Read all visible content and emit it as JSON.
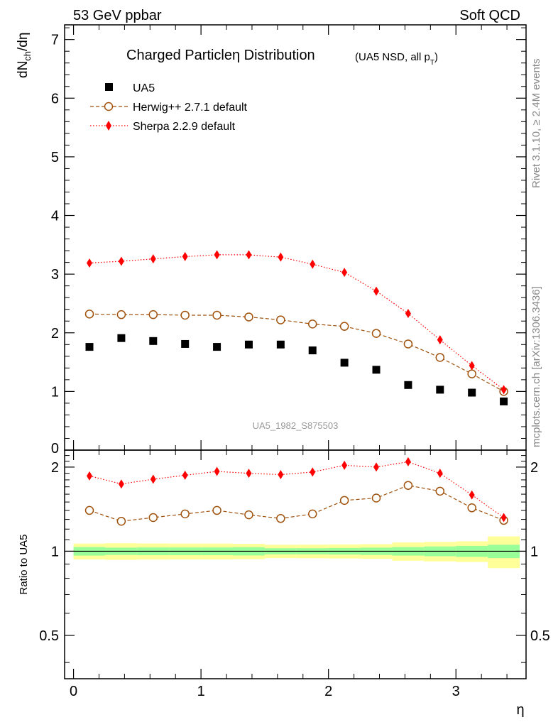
{
  "header": {
    "left": "53 GeV ppbar",
    "right": "Soft QCD"
  },
  "title": {
    "main": "Charged Particleη Distribution",
    "sub": "(UA5 NSD, all p",
    "sub_subscript": "T",
    "sub_close": ")"
  },
  "side_labels": {
    "rivet": "Rivet 3.1.10, ≥ 2.4M events",
    "mcplots": "mcplots.cern.ch [arXiv:1306.3436]"
  },
  "watermark": "UA5_1982_S875503",
  "colors": {
    "data": "#000000",
    "herwig": "#a0520d",
    "sherpa": "#ff0000",
    "band_outer": "#ffff99",
    "band_inner": "#99ff99"
  },
  "chart_data": [
    {
      "type": "scatter",
      "ylabel_main": "dN",
      "ylabel_sub": "ch",
      "ylabel_rest": "/dη",
      "xlim": [
        -0.07,
        3.55
      ],
      "ylim": [
        0,
        7.25
      ],
      "yticks": [
        1,
        2,
        3,
        4,
        5,
        6,
        7
      ],
      "ytick_labels": [
        "1",
        "2",
        "3",
        "4",
        "5",
        "6",
        "7"
      ],
      "bottom_tick_label": "0",
      "legend_position": "top-left",
      "x": [
        0.125,
        0.375,
        0.625,
        0.875,
        1.125,
        1.375,
        1.625,
        1.875,
        2.125,
        2.375,
        2.625,
        2.875,
        3.125,
        3.375
      ],
      "series": [
        {
          "name": "UA5",
          "marker": "square",
          "values": [
            1.76,
            1.91,
            1.86,
            1.81,
            1.76,
            1.8,
            1.8,
            1.7,
            1.49,
            1.37,
            1.11,
            1.03,
            0.98,
            0.83
          ]
        },
        {
          "name": "Herwig++ 2.7.1 default",
          "marker": "open-circle",
          "line": "dashed",
          "values": [
            2.32,
            2.31,
            2.31,
            2.3,
            2.3,
            2.27,
            2.22,
            2.15,
            2.11,
            1.99,
            1.81,
            1.58,
            1.3,
            1.0
          ]
        },
        {
          "name": "Sherpa 2.2.9 default",
          "marker": "diamond",
          "line": "dotted",
          "values": [
            3.19,
            3.22,
            3.26,
            3.3,
            3.33,
            3.33,
            3.29,
            3.17,
            3.03,
            2.71,
            2.33,
            1.88,
            1.44,
            1.03
          ]
        }
      ]
    },
    {
      "type": "scatter",
      "ylabel": "Ratio to UA5",
      "xlabel": "η",
      "xlim": [
        -0.07,
        3.55
      ],
      "ylim": [
        0.35,
        2.3
      ],
      "yticks": [
        0.5,
        1,
        2
      ],
      "ytick_labels": [
        "0.5",
        "1",
        "2"
      ],
      "xticks": [
        0,
        1,
        2,
        3
      ],
      "xtick_labels": [
        "0",
        "1",
        "2",
        "3"
      ],
      "bins": [
        [
          0.0,
          0.25
        ],
        [
          0.25,
          0.5
        ],
        [
          0.5,
          0.75
        ],
        [
          0.75,
          1.0
        ],
        [
          1.0,
          1.25
        ],
        [
          1.25,
          1.5
        ],
        [
          1.5,
          1.75
        ],
        [
          1.75,
          2.0
        ],
        [
          2.0,
          2.25
        ],
        [
          2.25,
          2.5
        ],
        [
          2.5,
          2.75
        ],
        [
          2.75,
          3.0
        ],
        [
          3.0,
          3.25
        ],
        [
          3.25,
          3.5
        ]
      ],
      "band_outer": [
        0.065,
        0.068,
        0.066,
        0.065,
        0.065,
        0.063,
        0.055,
        0.056,
        0.058,
        0.06,
        0.075,
        0.08,
        0.085,
        0.13
      ],
      "band_inner": [
        0.035,
        0.03,
        0.032,
        0.032,
        0.032,
        0.034,
        0.025,
        0.025,
        0.027,
        0.03,
        0.035,
        0.04,
        0.045,
        0.055
      ],
      "x": [
        0.125,
        0.375,
        0.625,
        0.875,
        1.125,
        1.375,
        1.625,
        1.875,
        2.125,
        2.375,
        2.625,
        2.875,
        3.125,
        3.375
      ],
      "series": [
        {
          "name": "Herwig++ 2.7.1 default",
          "marker": "open-circle",
          "line": "dashed",
          "values": [
            1.4,
            1.28,
            1.32,
            1.36,
            1.4,
            1.35,
            1.31,
            1.36,
            1.52,
            1.55,
            1.72,
            1.64,
            1.43,
            1.29
          ]
        },
        {
          "name": "Sherpa 2.2.9 default",
          "marker": "diamond",
          "line": "dotted",
          "values": [
            1.86,
            1.74,
            1.81,
            1.87,
            1.93,
            1.9,
            1.88,
            1.92,
            2.03,
            2.0,
            2.09,
            1.9,
            1.59,
            1.32
          ]
        }
      ]
    }
  ]
}
